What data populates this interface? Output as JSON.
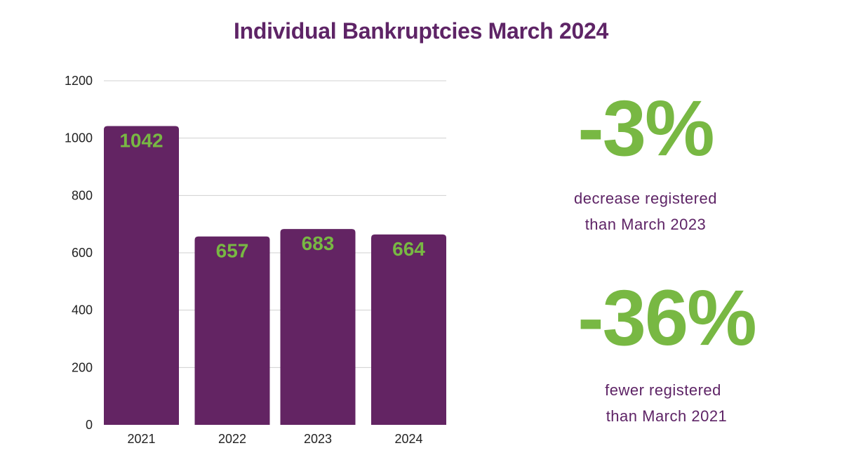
{
  "title": "Individual Bankruptcies March 2024",
  "chart_data": {
    "type": "bar",
    "categories": [
      "2021",
      "2022",
      "2023",
      "2024"
    ],
    "values": [
      1042,
      657,
      683,
      664
    ],
    "data_labels": [
      "1042",
      "657",
      "683",
      "664"
    ],
    "yticks": [
      0,
      200,
      400,
      600,
      800,
      1000,
      1200
    ],
    "ylim": [
      0,
      1200
    ],
    "xlabel": "",
    "ylabel": "",
    "grid": true,
    "bar_color": "#632463",
    "label_color": "#78b843",
    "grid_color": "#d0d0d0"
  },
  "stats": [
    {
      "value": "-3%",
      "line1": "decrease registered",
      "line2": "than March 2023"
    },
    {
      "value": "-36%",
      "line1": "fewer registered",
      "line2": "than March 2021"
    }
  ],
  "colors": {
    "title": "#5e2466",
    "accent_green": "#78b843",
    "text_purple": "#5e2466"
  }
}
